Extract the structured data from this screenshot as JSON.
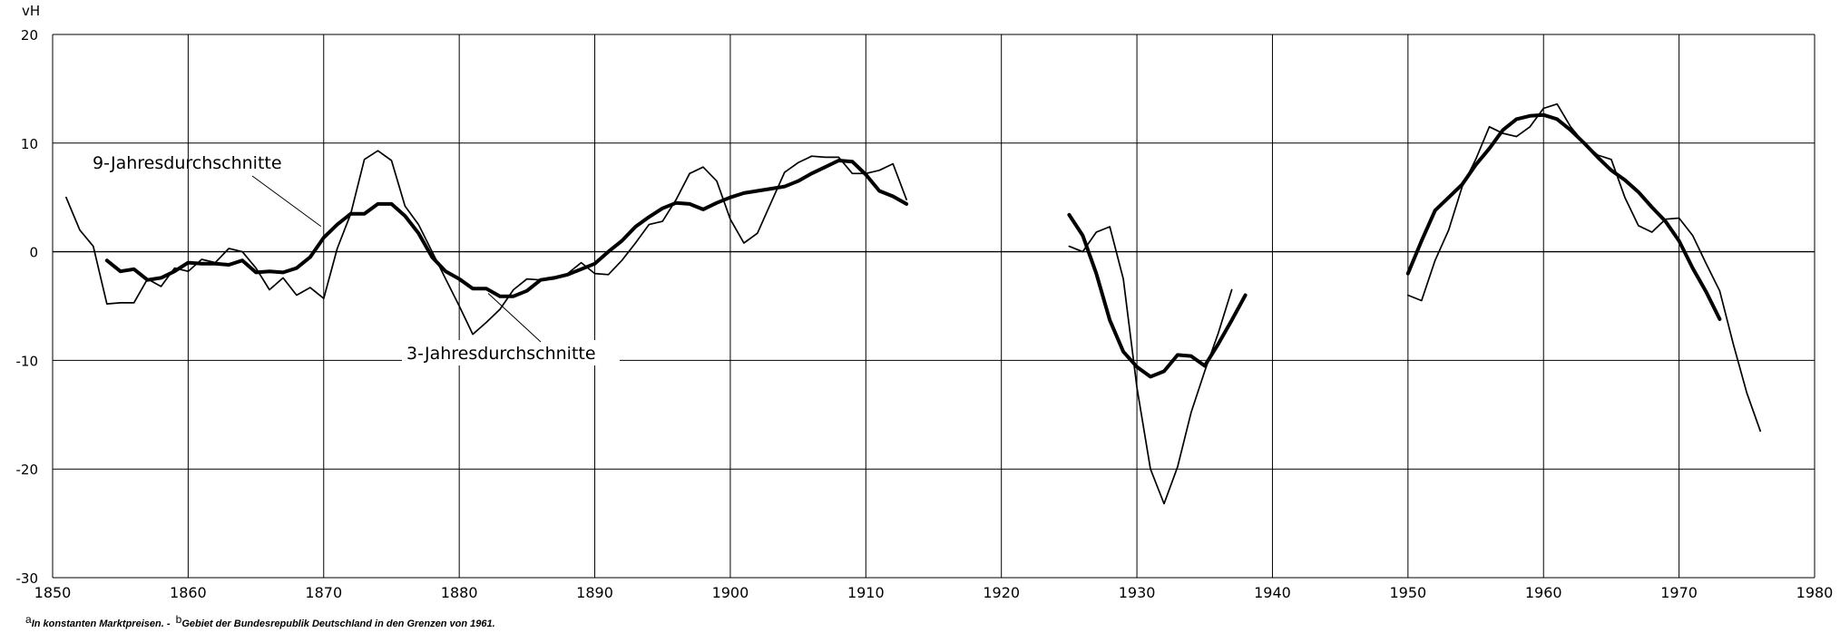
{
  "chart_data": {
    "type": "line",
    "ylabel": "vH",
    "xlim": [
      1850,
      1980
    ],
    "ylim": [
      -30,
      20
    ],
    "x_ticks": [
      1850,
      1860,
      1870,
      1880,
      1890,
      1900,
      1910,
      1920,
      1930,
      1940,
      1950,
      1960,
      1970,
      1980
    ],
    "y_ticks": [
      20,
      10,
      0,
      -10,
      -20,
      -30
    ],
    "grid": true,
    "annotations": [
      {
        "text": "9-Jahresdurchschnitte",
        "points_to": [
          1870,
          1.5
        ]
      },
      {
        "text": "3-Jahresdurchschnitte",
        "points_to": [
          1882,
          -3.5
        ]
      }
    ],
    "footnotes": [
      {
        "marker": "a",
        "text": "In konstanten Marktpreisen. -"
      },
      {
        "marker": "b",
        "text": "Gebiet der Bundesrepublik Deutschland in den Grenzen von 1961."
      }
    ],
    "series": [
      {
        "style": "thin",
        "segments": [
          {
            "x": [
              1851,
              1852,
              1853,
              1854,
              1855,
              1856,
              1857,
              1858,
              1859,
              1860,
              1861,
              1862,
              1863,
              1864,
              1865,
              1866,
              1867,
              1868,
              1869,
              1870,
              1871,
              1872,
              1873,
              1874,
              1875,
              1876,
              1877,
              1878,
              1879,
              1880,
              1881,
              1882,
              1883,
              1884,
              1885,
              1886,
              1887,
              1888,
              1889,
              1890,
              1891,
              1892,
              1893,
              1894,
              1895,
              1896,
              1897,
              1898,
              1899,
              1900,
              1901,
              1902,
              1903,
              1904,
              1905,
              1906,
              1907,
              1908,
              1909,
              1910,
              1911,
              1912,
              1913
            ],
            "y": [
              5,
              2,
              0.5,
              -4.8,
              -4.7,
              -4.7,
              -2.5,
              -3.2,
              -1.5,
              -1.8,
              -0.7,
              -1.0,
              0.3,
              0,
              -1.5,
              -3.5,
              -2.4,
              -4.0,
              -3.3,
              -4.3,
              0.3,
              3.5,
              8.5,
              9.3,
              8.4,
              4.2,
              2.5,
              0,
              -2.5,
              -5,
              -7.6,
              -6.5,
              -5.3,
              -3.5,
              -2.5,
              -2.6,
              -2.5,
              -2.0,
              -1.0,
              -2.0,
              -2.1,
              -0.8,
              0.8,
              2.5,
              2.8,
              4.8,
              7.2,
              7.8,
              6.5,
              3.0,
              0.8,
              1.7,
              4.5,
              7.3,
              8.2,
              8.8,
              8.7,
              8.7,
              7.2,
              7.2,
              7.5,
              8.1,
              4.8
            ]
          },
          {
            "x": [
              1925,
              1926,
              1927,
              1928,
              1929,
              1930,
              1931,
              1932,
              1933,
              1934,
              1935,
              1936,
              1937
            ],
            "y": [
              0.5,
              0,
              1.8,
              2.3,
              -2.5,
              -12.5,
              -20,
              -23.2,
              -19.8,
              -14.8,
              -11,
              -7.5,
              -3.5
            ]
          },
          {
            "x": [
              1950,
              1951,
              1952,
              1953,
              1954,
              1955,
              1956,
              1957,
              1958,
              1959,
              1960,
              1961,
              1962,
              1963,
              1964,
              1965,
              1966,
              1967,
              1968,
              1969,
              1970,
              1971,
              1972,
              1973,
              1974,
              1975,
              1976
            ],
            "y": [
              -4,
              -4.5,
              -0.8,
              2,
              6,
              8.5,
              11.5,
              10.9,
              10.6,
              11.5,
              13.2,
              13.6,
              11.5,
              10,
              8.9,
              8.5,
              5,
              2.4,
              1.8,
              3,
              3.1,
              1.5,
              -1.1,
              -3.6,
              -8.5,
              -13,
              -16.5
            ]
          }
        ]
      },
      {
        "style": "thick",
        "segments": [
          {
            "x": [
              1854,
              1855,
              1856,
              1857,
              1858,
              1859,
              1860,
              1861,
              1862,
              1863,
              1864,
              1865,
              1866,
              1867,
              1868,
              1869,
              1870,
              1871,
              1872,
              1873,
              1874,
              1875,
              1876,
              1877,
              1878,
              1879,
              1880,
              1881,
              1882,
              1883,
              1884,
              1885,
              1886,
              1887,
              1888,
              1889,
              1890,
              1891,
              1892,
              1893,
              1894,
              1895,
              1896,
              1897,
              1898,
              1899,
              1900,
              1901,
              1902,
              1903,
              1904,
              1905,
              1906,
              1907,
              1908,
              1909,
              1910,
              1911,
              1912,
              1913
            ],
            "y": [
              -0.8,
              -1.8,
              -1.6,
              -2.6,
              -2.4,
              -1.8,
              -1.0,
              -1.1,
              -1.1,
              -1.2,
              -0.8,
              -1.9,
              -1.8,
              -1.9,
              -1.5,
              -0.5,
              1.3,
              2.5,
              3.5,
              3.5,
              4.4,
              4.4,
              3.3,
              1.7,
              -0.5,
              -1.8,
              -2.5,
              -3.4,
              -3.4,
              -4.1,
              -4.1,
              -3.6,
              -2.6,
              -2.4,
              -2.1,
              -1.6,
              -1.1,
              0,
              1,
              2.3,
              3.2,
              4,
              4.5,
              4.4,
              3.9,
              4.5,
              5,
              5.4,
              5.6,
              5.8,
              6.0,
              6.5,
              7.2,
              7.8,
              8.4,
              8.3,
              7.1,
              5.6,
              5.1,
              4.4
            ]
          },
          {
            "x": [
              1925,
              1926,
              1927,
              1928,
              1929,
              1930,
              1931,
              1932,
              1933,
              1934,
              1935,
              1936,
              1937,
              1938
            ],
            "y": [
              3.4,
              1.5,
              -2,
              -6.3,
              -9.2,
              -10.6,
              -11.5,
              -11,
              -9.5,
              -9.6,
              -10.5,
              -8.5,
              -6.3,
              -4
            ]
          },
          {
            "x": [
              1950,
              1951,
              1952,
              1953,
              1954,
              1955,
              1956,
              1957,
              1958,
              1959,
              1960,
              1961,
              1962,
              1963,
              1964,
              1965,
              1966,
              1967,
              1968,
              1969,
              1970,
              1971,
              1972,
              1973
            ],
            "y": [
              -2,
              1,
              3.8,
              5,
              6.2,
              8,
              9.5,
              11.2,
              12.2,
              12.5,
              12.6,
              12.2,
              11.2,
              10,
              8.7,
              7.5,
              6.6,
              5.5,
              4.1,
              2.8,
              1.0,
              -1.5,
              -3.7,
              -6.2
            ]
          }
        ]
      }
    ]
  }
}
